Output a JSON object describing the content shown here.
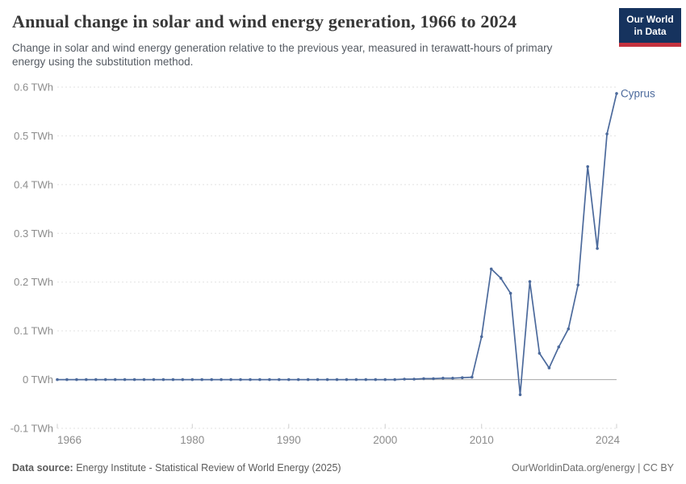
{
  "header": {
    "title": "Annual change in solar and wind energy generation, 1966 to 2024",
    "subtitle": "Change in solar and wind energy generation relative to the previous year, measured in terawatt-hours of primary energy using the substitution method.",
    "logo": {
      "line1": "Our World",
      "line2": "in Data",
      "bg_color": "#16335e",
      "bar_color": "#c4323f"
    }
  },
  "footer": {
    "source_label": "Data source:",
    "source_text": " Energy Institute - Statistical Review of World Energy (2025)",
    "right_text": "OurWorldinData.org/energy | CC BY"
  },
  "chart_data": {
    "type": "line",
    "title": "Annual change in solar and wind energy generation, 1966 to 2024",
    "entity_label": "Cyprus",
    "unit": "TWh",
    "xlabel": "",
    "ylabel": "TWh",
    "xlim": [
      1966,
      2024
    ],
    "ylim": [
      -0.1,
      0.6
    ],
    "x_ticks": [
      1966,
      1980,
      1990,
      2000,
      2010,
      2024
    ],
    "y_ticks": [
      -0.1,
      0,
      0.1,
      0.2,
      0.3,
      0.4,
      0.5,
      0.6
    ],
    "y_tick_suffix": " TWh",
    "grid": true,
    "legend_position": "end-of-line",
    "x": [
      1966,
      1967,
      1968,
      1969,
      1970,
      1971,
      1972,
      1973,
      1974,
      1975,
      1976,
      1977,
      1978,
      1979,
      1980,
      1981,
      1982,
      1983,
      1984,
      1985,
      1986,
      1987,
      1988,
      1989,
      1990,
      1991,
      1992,
      1993,
      1994,
      1995,
      1996,
      1997,
      1998,
      1999,
      2000,
      2001,
      2002,
      2003,
      2004,
      2005,
      2006,
      2007,
      2008,
      2009,
      2010,
      2011,
      2012,
      2013,
      2014,
      2015,
      2016,
      2017,
      2018,
      2019,
      2020,
      2021,
      2022,
      2023,
      2024
    ],
    "series": [
      {
        "name": "Cyprus",
        "values": [
          0,
          0,
          0,
          0,
          0,
          0,
          0,
          0,
          0,
          0,
          0,
          0,
          0,
          0,
          0,
          0,
          0,
          0,
          0,
          0,
          0,
          0,
          0,
          0,
          0,
          0,
          0,
          0,
          0,
          0,
          0,
          0,
          0,
          0,
          0,
          0,
          0.001,
          0.001,
          0.002,
          0.002,
          0.003,
          0.003,
          0.004,
          0.005,
          0.088,
          0.227,
          0.208,
          0.177,
          -0.031,
          0.201,
          0.054,
          0.024,
          0.067,
          0.104,
          0.194,
          0.437,
          0.269,
          0.504,
          0.587
        ]
      }
    ],
    "colors": {
      "line": "#4c6a9c",
      "gridline": "#e2e2e2",
      "zero_line": "#a8a8a8",
      "tick_text": "#8c8c8c",
      "tick_mark": "#cfcfcf"
    }
  }
}
